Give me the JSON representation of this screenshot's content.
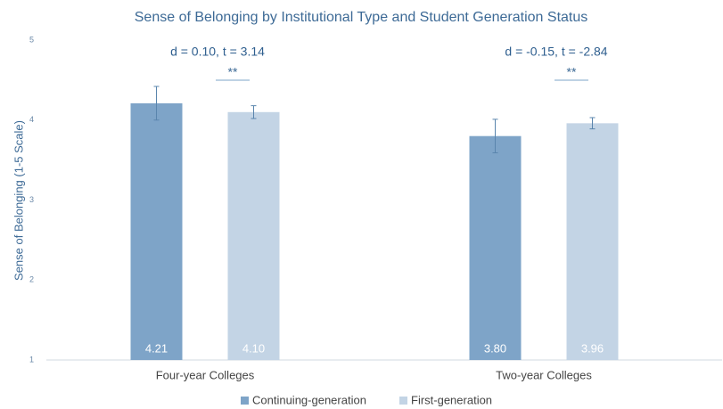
{
  "chart_data": {
    "type": "bar",
    "title": "Sense of Belonging by Institutional Type and Student Generation Status",
    "y_label": "Sense of Belonging (1-5 Scale)",
    "categories": [
      "Four-year Colleges",
      "Two-year Colleges"
    ],
    "series": [
      {
        "name": "Continuing-generation",
        "color": "#7ea4c8",
        "values": [
          4.21,
          3.8
        ],
        "value_labels": [
          "4.21",
          "3.80"
        ],
        "errors": [
          0.21,
          0.21
        ]
      },
      {
        "name": "First-generation",
        "color": "#c3d4e5",
        "values": [
          4.1,
          3.96
        ],
        "value_labels": [
          "4.10",
          "3.96"
        ],
        "errors": [
          0.08,
          0.07
        ]
      }
    ],
    "annotations": [
      {
        "text": "d = 0.10, t = 3.14",
        "significance": "**"
      },
      {
        "text": "d = -0.15, t = -2.84",
        "significance": "**"
      }
    ],
    "ylim": [
      1,
      5
    ],
    "yticks": [
      1,
      2,
      3,
      4,
      5
    ],
    "grid": false,
    "legend": "bottom"
  }
}
